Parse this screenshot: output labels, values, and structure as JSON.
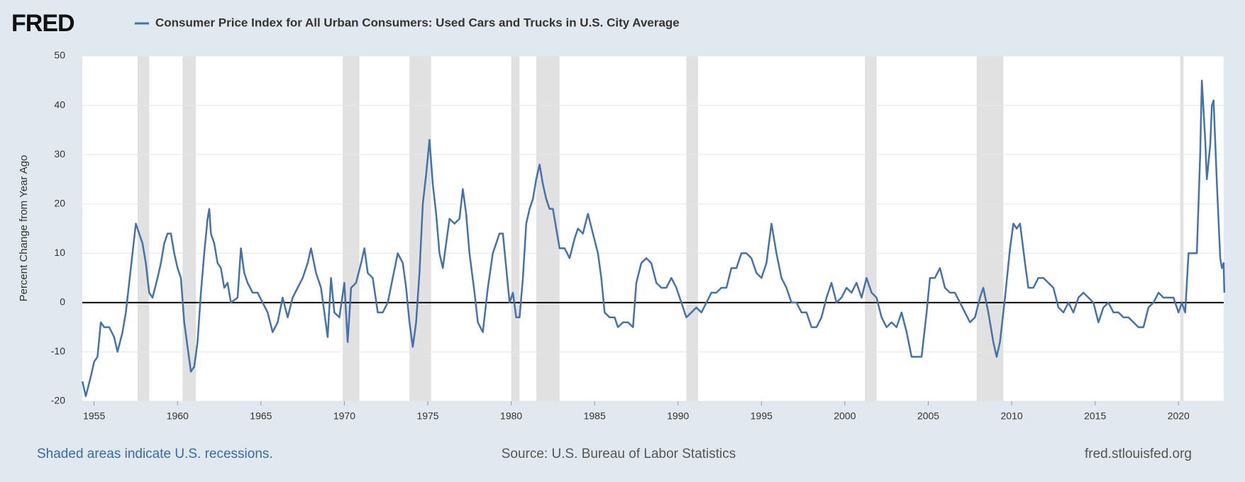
{
  "logo": "FRED",
  "chart_data": {
    "type": "line",
    "ylabel": "Percent Change from Year Ago",
    "note": "Shaded areas indicate U.S. recessions.",
    "source": "Source: U.S. Bureau of Labor Statistics",
    "url": "fred.stlouisfed.org",
    "xlim": [
      1954.29,
      2022.71
    ],
    "xticks": [
      1955,
      1960,
      1965,
      1970,
      1975,
      1980,
      1985,
      1990,
      1995,
      2000,
      2005,
      2010,
      2015,
      2020
    ],
    "ylim": [
      -20,
      50
    ],
    "yticks": [
      -20,
      -10,
      0,
      10,
      20,
      30,
      40,
      50
    ],
    "grid": true,
    "recessions": [
      [
        1957.6,
        1958.3
      ],
      [
        1960.3,
        1961.1
      ],
      [
        1969.9,
        1970.9
      ],
      [
        1973.9,
        1975.2
      ],
      [
        1980.0,
        1980.5
      ],
      [
        1981.5,
        1982.9
      ],
      [
        1990.5,
        1991.2
      ],
      [
        2001.2,
        2001.9
      ],
      [
        2007.9,
        2009.5
      ],
      [
        2020.1,
        2020.3
      ]
    ],
    "x": [
      1954.3,
      1954.5,
      1954.8,
      1955.0,
      1955.2,
      1955.4,
      1955.6,
      1955.9,
      1956.2,
      1956.4,
      1956.7,
      1956.9,
      1957.1,
      1957.3,
      1957.5,
      1957.7,
      1957.9,
      1958.1,
      1958.3,
      1958.5,
      1958.8,
      1959.0,
      1959.2,
      1959.4,
      1959.6,
      1959.8,
      1960.0,
      1960.2,
      1960.4,
      1960.6,
      1960.8,
      1961.0,
      1961.2,
      1961.4,
      1961.6,
      1961.8,
      1961.9,
      1962.0,
      1962.2,
      1962.4,
      1962.6,
      1962.8,
      1963.0,
      1963.2,
      1963.6,
      1963.8,
      1964.0,
      1964.2,
      1964.5,
      1964.8,
      1965.1,
      1965.4,
      1965.7,
      1966.0,
      1966.3,
      1966.6,
      1966.9,
      1967.2,
      1967.5,
      1967.8,
      1968.0,
      1968.3,
      1968.6,
      1968.8,
      1969.0,
      1969.2,
      1969.4,
      1969.7,
      1970.0,
      1970.2,
      1970.4,
      1970.7,
      1971.0,
      1971.2,
      1971.4,
      1971.7,
      1972.0,
      1972.3,
      1972.6,
      1972.9,
      1973.2,
      1973.5,
      1973.7,
      1973.9,
      1974.1,
      1974.3,
      1974.5,
      1974.7,
      1974.9,
      1975.1,
      1975.3,
      1975.5,
      1975.7,
      1975.9,
      1976.1,
      1976.3,
      1976.6,
      1976.9,
      1977.1,
      1977.3,
      1977.5,
      1977.8,
      1978.0,
      1978.3,
      1978.6,
      1978.9,
      1979.1,
      1979.3,
      1979.5,
      1979.7,
      1979.9,
      1980.1,
      1980.3,
      1980.5,
      1980.7,
      1980.9,
      1981.1,
      1981.3,
      1981.5,
      1981.7,
      1981.9,
      1982.1,
      1982.3,
      1982.5,
      1982.7,
      1982.9,
      1983.2,
      1983.5,
      1983.8,
      1984.0,
      1984.3,
      1984.6,
      1984.9,
      1985.2,
      1985.4,
      1985.6,
      1985.9,
      1986.2,
      1986.4,
      1986.7,
      1987.0,
      1987.3,
      1987.5,
      1987.8,
      1988.1,
      1988.4,
      1988.7,
      1989.0,
      1989.3,
      1989.6,
      1989.9,
      1990.2,
      1990.5,
      1990.8,
      1991.1,
      1991.4,
      1991.7,
      1992.0,
      1992.3,
      1992.6,
      1992.9,
      1993.2,
      1993.5,
      1993.8,
      1994.1,
      1994.4,
      1994.7,
      1995.0,
      1995.3,
      1995.6,
      1995.9,
      1996.2,
      1996.5,
      1996.8,
      1997.1,
      1997.4,
      1997.7,
      1998.0,
      1998.3,
      1998.6,
      1998.9,
      1999.2,
      1999.5,
      1999.8,
      2000.1,
      2000.4,
      2000.7,
      2001.0,
      2001.3,
      2001.6,
      2001.9,
      2002.2,
      2002.5,
      2002.8,
      2003.1,
      2003.4,
      2003.7,
      2004.0,
      2004.3,
      2004.6,
      2004.9,
      2005.1,
      2005.4,
      2005.7,
      2006.0,
      2006.3,
      2006.6,
      2006.9,
      2007.2,
      2007.5,
      2007.8,
      2008.1,
      2008.3,
      2008.6,
      2008.9,
      2009.1,
      2009.3,
      2009.6,
      2009.9,
      2010.1,
      2010.3,
      2010.5,
      2010.8,
      2011.0,
      2011.3,
      2011.6,
      2011.9,
      2012.2,
      2012.5,
      2012.8,
      2013.1,
      2013.4,
      2013.7,
      2014.0,
      2014.3,
      2014.6,
      2014.9,
      2015.2,
      2015.5,
      2015.8,
      2016.1,
      2016.4,
      2016.7,
      2017.0,
      2017.3,
      2017.6,
      2017.9,
      2018.2,
      2018.5,
      2018.8,
      2019.1,
      2019.4,
      2019.7,
      2020.0,
      2020.2,
      2020.4,
      2020.6,
      2020.9,
      2021.1,
      2021.3,
      2021.4,
      2021.6,
      2021.7,
      2021.9,
      2022.0,
      2022.1,
      2022.3,
      2022.5,
      2022.6,
      2022.7,
      2022.75
    ],
    "series": [
      {
        "name": "Consumer Price Index for All Urban Consumers: Used Cars and Trucks in U.S. City Average",
        "color": "#4572a7",
        "values": [
          -16,
          -19,
          -15,
          -12,
          -11,
          -4,
          -5,
          -5,
          -7,
          -10,
          -6,
          -2,
          4,
          10,
          16,
          14,
          12,
          8,
          2,
          1,
          5,
          8,
          12,
          14,
          14,
          10,
          7,
          5,
          -4,
          -9,
          -14,
          -13,
          -8,
          2,
          10,
          17,
          19,
          14,
          12,
          8,
          7,
          3,
          4,
          0,
          1,
          11,
          6,
          4,
          2,
          2,
          0,
          -2,
          -6,
          -4,
          1,
          -3,
          1,
          3,
          5,
          8,
          11,
          6,
          3,
          -2,
          -7,
          5,
          -2,
          -3,
          4,
          -8,
          3,
          4,
          8,
          11,
          6,
          5,
          -2,
          -2,
          0,
          5,
          10,
          8,
          3,
          -4,
          -9,
          -4,
          6,
          20,
          26,
          33,
          24,
          18,
          10,
          7,
          12,
          17,
          16,
          17,
          23,
          18,
          10,
          2,
          -4,
          -6,
          3,
          10,
          12,
          14,
          14,
          7,
          0,
          2,
          -3,
          -3,
          5,
          16,
          19,
          21,
          25,
          28,
          24,
          21,
          19,
          19,
          15,
          11,
          11,
          9,
          13,
          15,
          14,
          18,
          14,
          10,
          5,
          -2,
          -3,
          -3,
          -5,
          -4,
          -4,
          -5,
          4,
          8,
          9,
          8,
          4,
          3,
          3,
          5,
          3,
          0,
          -3,
          -2,
          -1,
          -2,
          0,
          2,
          2,
          3,
          3,
          7,
          7,
          10,
          10,
          9,
          6,
          5,
          8,
          16,
          10,
          5,
          3,
          0,
          0,
          -2,
          -2,
          -5,
          -5,
          -3,
          1,
          4,
          0,
          1,
          3,
          2,
          4,
          1,
          5,
          2,
          1,
          -3,
          -5,
          -4,
          -5,
          -2,
          -6,
          -11,
          -11,
          -11,
          -2,
          5,
          5,
          7,
          3,
          2,
          2,
          0,
          -2,
          -4,
          -3,
          1,
          3,
          -2,
          -8,
          -11,
          -8,
          1,
          11,
          16,
          15,
          16,
          8,
          3,
          3,
          5,
          5,
          4,
          3,
          -1,
          -2,
          0,
          -2,
          1,
          2,
          1,
          0,
          -4,
          -1,
          0,
          -2,
          -2,
          -3,
          -3,
          -4,
          -5,
          -5,
          -1,
          0,
          2,
          1,
          1,
          1,
          -2,
          0,
          -2,
          10,
          10,
          10,
          30,
          45,
          33,
          25,
          32,
          40,
          41,
          24,
          9,
          7,
          8,
          2
        ]
      }
    ]
  }
}
